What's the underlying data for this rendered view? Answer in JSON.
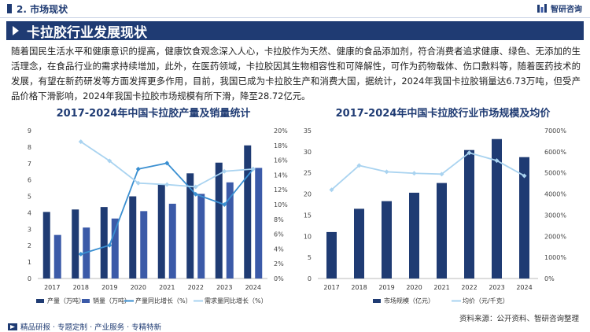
{
  "header": {
    "section": "2. 市场现状",
    "brand": "智研咨询"
  },
  "banner": {
    "title": "卡拉胶行业发展现状"
  },
  "paragraph": "随着国民生活水平和健康意识的提高，健康饮食观念深入人心，卡拉胶作为天然、健康的食品添加剂，符合消费者追求健康、绿色、无添加的生活理念，在食品行业的需求持续增加，此外，在医药领域，卡拉胶因其生物相容性和可降解性，可作为药物载体、伤口敷料等，随着医药技术的发展，有望在新药研发等方面发挥更多作用，目前，我国已成为卡拉胶生产和消费大国，据统计，2024年我国卡拉胶销量达6.73万吨，但受产品价格下滑影响，2024年我国卡拉胶市场规模有所下滑，降至28.72亿元。",
  "source": "资料来源：公开资料、智研咨询整理",
  "footer": "精品研报 · 专题定制 · 产业服务 · 专精特新",
  "colors": {
    "navy": "#1f3b73",
    "blue": "#3b5aa8",
    "line_dark": "#3a8fd1",
    "line_light": "#a9d3f0"
  },
  "chart_data": [
    {
      "type": "bar",
      "title": "2017-2024年中国卡拉胶产量及销量统计",
      "categories": [
        "2017",
        "2018",
        "2019",
        "2020",
        "2021",
        "2022",
        "2023",
        "2024"
      ],
      "y_left_ticks": [
        "0",
        "1",
        "2",
        "3",
        "4",
        "5",
        "6",
        "7",
        "8",
        "9"
      ],
      "y_right_ticks": [
        "0%",
        "2%",
        "4%",
        "6%",
        "8%",
        "10%",
        "12%",
        "14%",
        "16%",
        "18%",
        "20%"
      ],
      "ylim_left": [
        0,
        9
      ],
      "ylim_right": [
        0,
        20
      ],
      "series": [
        {
          "name": "产量（万吨）",
          "kind": "bar",
          "color": "#1f3b73",
          "values": [
            4.05,
            4.2,
            4.35,
            5.0,
            5.75,
            6.4,
            7.05,
            8.1
          ]
        },
        {
          "name": "销量（万吨）",
          "kind": "bar",
          "color": "#3b5aa8",
          "values": [
            2.65,
            3.1,
            3.65,
            4.1,
            4.55,
            5.15,
            5.85,
            6.73
          ]
        },
        {
          "name": "产量同比增长（%）",
          "kind": "line",
          "axis": "right",
          "color": "#3a8fd1",
          "values": [
            null,
            3.3,
            4.5,
            14.8,
            15.6,
            11.4,
            10.0,
            14.8
          ]
        },
        {
          "name": "需求量同比增长（%）",
          "kind": "line",
          "axis": "right",
          "color": "#a9d3f0",
          "values": [
            null,
            18.5,
            15.9,
            12.9,
            12.7,
            12.4,
            14.5,
            14.8
          ]
        }
      ]
    },
    {
      "type": "bar",
      "title": "2017-2024年中国卡拉胶行业市场规模及均价",
      "categories": [
        "2017",
        "2018",
        "2019",
        "2020",
        "2021",
        "2022",
        "2023",
        "2024"
      ],
      "y_left_ticks": [
        "0",
        "5",
        "10",
        "15",
        "20",
        "25",
        "30",
        "35"
      ],
      "y_right_ticks": [
        "0%",
        "1000%",
        "2000%",
        "3000%",
        "4000%",
        "5000%",
        "6000%",
        "7000%"
      ],
      "ylim_left": [
        0,
        35
      ],
      "ylim_right": [
        0,
        7000
      ],
      "series": [
        {
          "name": "市场规模（亿元）",
          "kind": "bar",
          "color": "#1f3b73",
          "values": [
            11.0,
            16.5,
            18.3,
            20.3,
            22.6,
            30.4,
            33.0,
            28.72
          ]
        },
        {
          "name": "均价（元/千克）",
          "kind": "line",
          "axis": "right",
          "color": "#a9d3f0",
          "values": [
            4200,
            5350,
            5050,
            4980,
            4940,
            5950,
            5580,
            4860
          ]
        }
      ]
    }
  ]
}
